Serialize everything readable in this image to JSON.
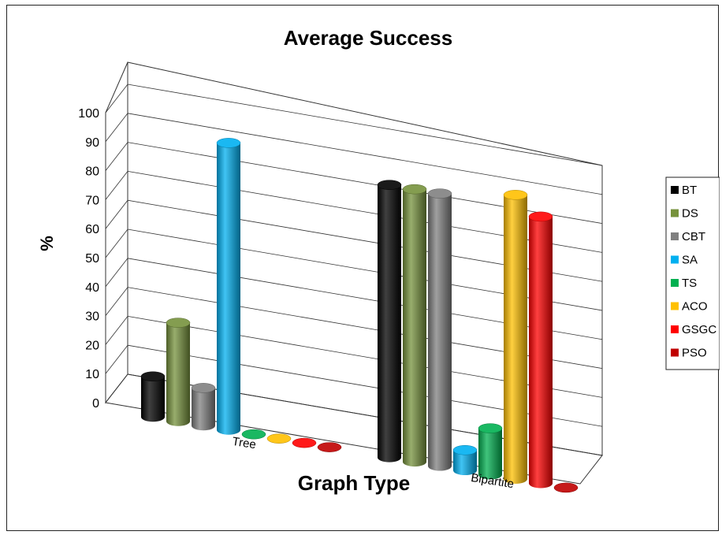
{
  "chart_data": {
    "type": "bar",
    "title": "Average Success",
    "xlabel": "Graph Type",
    "ylabel": "%",
    "categories": [
      "Tree",
      "Bipartite"
    ],
    "ylim": [
      0,
      100
    ],
    "yticks": [
      0,
      10,
      20,
      30,
      40,
      50,
      60,
      70,
      80,
      90,
      100
    ],
    "grid": true,
    "legend_position": "right",
    "three_d": true,
    "series": [
      {
        "name": "BT",
        "color": "#000000",
        "values": [
          14,
          94
        ]
      },
      {
        "name": "DS",
        "color": "#76923c",
        "values": [
          34,
          94
        ]
      },
      {
        "name": "CBT",
        "color": "#808080",
        "values": [
          13,
          94
        ]
      },
      {
        "name": "SA",
        "color": "#00b0f0",
        "values": [
          99,
          7
        ]
      },
      {
        "name": "TS",
        "color": "#00b050",
        "values": [
          0,
          16
        ]
      },
      {
        "name": "ACO",
        "color": "#ffc000",
        "values": [
          0,
          98
        ]
      },
      {
        "name": "GSGC",
        "color": "#ff0000",
        "values": [
          0,
          92
        ]
      },
      {
        "name": "PSO",
        "color": "#c00000",
        "values": [
          0,
          0
        ]
      }
    ]
  }
}
